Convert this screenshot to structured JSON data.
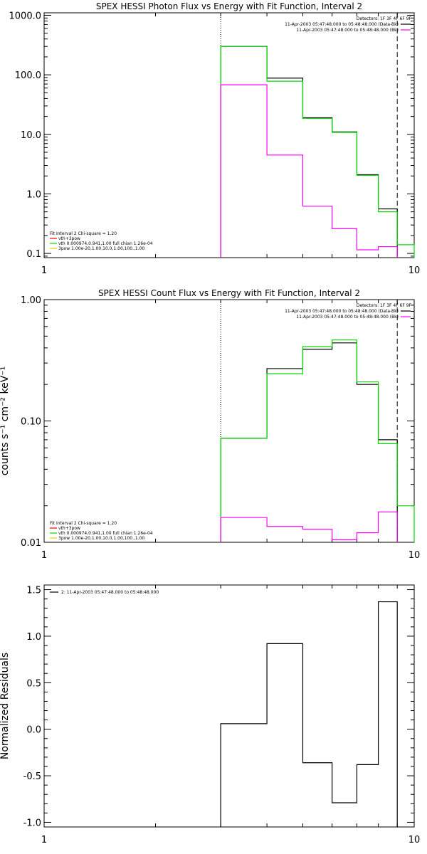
{
  "chart_data": [
    {
      "type": "line",
      "step": true,
      "title": "SPEX HESSI Photon Flux vs Energy with Fit Function, Interval 2",
      "xlabel": "",
      "ylabel": "",
      "xscale": "log",
      "yscale": "log",
      "xlim": [
        1,
        10
      ],
      "ylim": [
        0.085,
        1100
      ],
      "x_ticks": [
        {
          "value": 1,
          "label": "1"
        },
        {
          "value": 10,
          "label": "10"
        }
      ],
      "y_ticks": [
        {
          "value": 0.1,
          "label": "0.1"
        },
        {
          "value": 1,
          "label": "1.0"
        },
        {
          "value": 10,
          "label": "10.0"
        },
        {
          "value": 100,
          "label": "100.0"
        },
        {
          "value": 1000,
          "label": "1000.0"
        }
      ],
      "vlines": [
        {
          "x": 3.0,
          "style": "dotted",
          "color": "#000000"
        },
        {
          "x": 9.0,
          "style": "dashed",
          "color": "#000000"
        }
      ],
      "edges": [
        3.0,
        4.0,
        5.0,
        6.0,
        7.0,
        8.0,
        9.0,
        10.0
      ],
      "series": [
        {
          "color": "#000000",
          "values": [
            300,
            88,
            19,
            11,
            2.1,
            0.56,
            null
          ]
        },
        {
          "color": "#00dd00",
          "values": [
            300,
            78,
            18.5,
            10.8,
            2.05,
            0.5,
            0.14
          ]
        },
        {
          "color": "#ff00ff",
          "values": [
            68,
            4.5,
            0.62,
            0.26,
            0.115,
            0.13,
            null
          ]
        }
      ],
      "legend_header": [
        "Detectors: 1F 3F 4F 6F 9F",
        "11-Apr-2003 05:47:48.000 to 05:48:48.000 (Data-Bk)",
        "11-Apr-2003 05:47:48.000 to 05:48:48.000 (Bk)"
      ],
      "legend_header_colors": [
        "",
        "#000000",
        "#ff00ff"
      ],
      "legend_fit": [
        "Fit Interval  2    Chi-square = 1.20",
        "vth+3pow",
        "vth 0.000974,0.941,1.00  full chian 1.26e-04",
        "3pow 1.00e-20,1.00,10.0,1.00,100.,1.00"
      ],
      "legend_fit_colors": [
        "",
        "#ff0000",
        "#00dd00",
        "#ffcc00"
      ]
    },
    {
      "type": "line",
      "step": true,
      "title": "SPEX HESSI Count Flux vs Energy with Fit Function, Interval 2",
      "xlabel": "",
      "ylabel": "counts s⁻¹ cm⁻² keV⁻¹",
      "xscale": "log",
      "yscale": "log",
      "xlim": [
        1,
        10
      ],
      "ylim": [
        0.01,
        1.0
      ],
      "x_ticks": [
        {
          "value": 1,
          "label": "1"
        },
        {
          "value": 10,
          "label": "10"
        }
      ],
      "y_ticks": [
        {
          "value": 0.01,
          "label": "0.01"
        },
        {
          "value": 0.1,
          "label": "0.10"
        },
        {
          "value": 1,
          "label": "1.00"
        }
      ],
      "vlines": [
        {
          "x": 3.0,
          "style": "dotted",
          "color": "#000000"
        },
        {
          "x": 9.0,
          "style": "dashed",
          "color": "#000000"
        }
      ],
      "edges": [
        3.0,
        4.0,
        5.0,
        6.0,
        7.0,
        8.0,
        9.0,
        10.0
      ],
      "series": [
        {
          "color": "#000000",
          "values": [
            0.072,
            0.27,
            0.39,
            0.44,
            0.2,
            0.07,
            null
          ]
        },
        {
          "color": "#00dd00",
          "values": [
            0.072,
            0.245,
            0.41,
            0.465,
            0.21,
            0.065,
            0.02
          ]
        },
        {
          "color": "#ff00ff",
          "values": [
            0.016,
            0.0135,
            0.0128,
            0.0105,
            0.012,
            0.0178,
            null
          ]
        }
      ],
      "legend_header": [
        "Detectors: 1F 3F 4F 6F 9F",
        "11-Apr-2003 05:47:48.000 to 05:48:48.000 (Data-Bk)",
        "11-Apr-2003 05:47:48.000 to 05:48:48.000 (Bk)"
      ],
      "legend_header_colors": [
        "",
        "#000000",
        "#ff00ff"
      ],
      "legend_fit": [
        "Fit Interval  2    Chi-square = 1.20",
        "vth+3pow",
        "vth 0.000974,0.941,1.00  full chian 1.26e-04",
        "3pow 1.00e-20,1.00,10.0,1.00,100.,1.00"
      ],
      "legend_fit_colors": [
        "",
        "#ff0000",
        "#00dd00",
        "#ffcc00"
      ]
    },
    {
      "type": "line",
      "step": true,
      "title": "",
      "xlabel": "",
      "ylabel": "Normalized Residuals",
      "xscale": "log",
      "yscale": "linear",
      "xlim": [
        1,
        10
      ],
      "ylim": [
        -1.05,
        1.55
      ],
      "x_ticks": [
        {
          "value": 1,
          "label": "1"
        },
        {
          "value": 10,
          "label": "10"
        }
      ],
      "y_ticks": [
        {
          "value": -1.0,
          "label": "-1.0"
        },
        {
          "value": -0.5,
          "label": "-0.5"
        },
        {
          "value": 0.0,
          "label": "0.0"
        },
        {
          "value": 0.5,
          "label": "0.5"
        },
        {
          "value": 1.0,
          "label": "1.0"
        },
        {
          "value": 1.5,
          "label": "1.5"
        }
      ],
      "vlines": [],
      "edges": [
        3.0,
        4.0,
        5.0,
        6.0,
        7.0,
        8.0,
        9.0
      ],
      "series": [
        {
          "color": "#000000",
          "values": [
            0.06,
            0.92,
            -0.36,
            -0.79,
            -0.38,
            1.37
          ]
        }
      ],
      "legend_header": [
        "2: 11-Apr-2003 05:47:48.000 to 05:48:48.000"
      ],
      "legend_header_colors": [
        "#000000"
      ],
      "legend_fit": [],
      "legend_fit_colors": []
    }
  ]
}
